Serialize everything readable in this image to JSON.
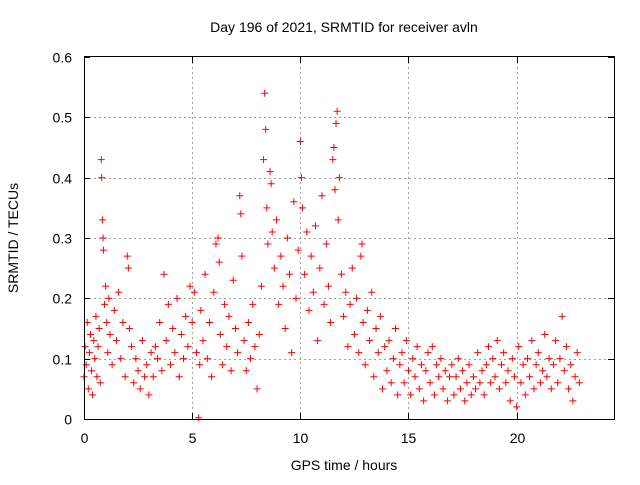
{
  "chart_data": {
    "type": "scatter",
    "title": "Day 196 of 2021, SRMTID for receiver avln",
    "xlabel": "GPS time / hours",
    "ylabel": "SRMTID / TECUs",
    "xlim": [
      0,
      24.5
    ],
    "ylim": [
      0,
      0.6
    ],
    "x_ticks": [
      "0",
      "5",
      "10",
      "15",
      "20"
    ],
    "x_tick_values": [
      0,
      5,
      10,
      15,
      20
    ],
    "y_ticks": [
      "0",
      "0.1",
      "0.2",
      "0.3",
      "0.4",
      "0.5",
      "0.6"
    ],
    "y_tick_values": [
      0,
      0.1,
      0.2,
      0.3,
      0.4,
      0.5,
      0.6
    ],
    "grid": true,
    "marker": "+",
    "color": "#ff0000",
    "series": [
      {
        "name": "SRMTID",
        "points": [
          [
            0.0,
            0.07
          ],
          [
            0.05,
            0.12
          ],
          [
            0.1,
            0.09
          ],
          [
            0.15,
            0.16
          ],
          [
            0.2,
            0.05
          ],
          [
            0.25,
            0.11
          ],
          [
            0.3,
            0.14
          ],
          [
            0.35,
            0.08
          ],
          [
            0.4,
            0.04
          ],
          [
            0.45,
            0.13
          ],
          [
            0.5,
            0.1
          ],
          [
            0.55,
            0.17
          ],
          [
            0.6,
            0.07
          ],
          [
            0.65,
            0.12
          ],
          [
            0.7,
            0.15
          ],
          [
            0.75,
            0.06
          ],
          [
            0.8,
            0.43
          ],
          [
            0.82,
            0.4
          ],
          [
            0.85,
            0.33
          ],
          [
            0.88,
            0.3
          ],
          [
            0.9,
            0.28
          ],
          [
            0.95,
            0.19
          ],
          [
            1.0,
            0.22
          ],
          [
            1.05,
            0.16
          ],
          [
            1.1,
            0.11
          ],
          [
            1.15,
            0.2
          ],
          [
            1.2,
            0.14
          ],
          [
            1.3,
            0.09
          ],
          [
            1.4,
            0.18
          ],
          [
            1.5,
            0.13
          ],
          [
            1.6,
            0.21
          ],
          [
            1.7,
            0.1
          ],
          [
            1.8,
            0.16
          ],
          [
            1.9,
            0.07
          ],
          [
            2.0,
            0.27
          ],
          [
            2.05,
            0.25
          ],
          [
            2.1,
            0.15
          ],
          [
            2.2,
            0.12
          ],
          [
            2.3,
            0.06
          ],
          [
            2.4,
            0.1
          ],
          [
            2.5,
            0.08
          ],
          [
            2.6,
            0.05
          ],
          [
            2.7,
            0.13
          ],
          [
            2.8,
            0.07
          ],
          [
            2.9,
            0.09
          ],
          [
            3.0,
            0.04
          ],
          [
            3.1,
            0.11
          ],
          [
            3.2,
            0.07
          ],
          [
            3.3,
            0.12
          ],
          [
            3.4,
            0.1
          ],
          [
            3.5,
            0.16
          ],
          [
            3.6,
            0.08
          ],
          [
            3.7,
            0.24
          ],
          [
            3.8,
            0.13
          ],
          [
            3.9,
            0.19
          ],
          [
            4.0,
            0.09
          ],
          [
            4.1,
            0.15
          ],
          [
            4.2,
            0.11
          ],
          [
            4.3,
            0.2
          ],
          [
            4.4,
            0.07
          ],
          [
            4.5,
            0.14
          ],
          [
            4.6,
            0.1
          ],
          [
            4.7,
            0.17
          ],
          [
            4.8,
            0.12
          ],
          [
            4.9,
            0.22
          ],
          [
            5.0,
            0.16
          ],
          [
            5.1,
            0.21
          ],
          [
            5.2,
            0.11
          ],
          [
            5.3,
            0.002
          ],
          [
            5.35,
            0.09
          ],
          [
            5.4,
            0.18
          ],
          [
            5.5,
            0.13
          ],
          [
            5.6,
            0.24
          ],
          [
            5.7,
            0.1
          ],
          [
            5.8,
            0.16
          ],
          [
            5.9,
            0.07
          ],
          [
            6.0,
            0.21
          ],
          [
            6.1,
            0.29
          ],
          [
            6.2,
            0.3
          ],
          [
            6.25,
            0.26
          ],
          [
            6.3,
            0.14
          ],
          [
            6.4,
            0.09
          ],
          [
            6.5,
            0.19
          ],
          [
            6.6,
            0.12
          ],
          [
            6.7,
            0.17
          ],
          [
            6.8,
            0.08
          ],
          [
            6.9,
            0.23
          ],
          [
            7.0,
            0.15
          ],
          [
            7.1,
            0.11
          ],
          [
            7.2,
            0.37
          ],
          [
            7.25,
            0.34
          ],
          [
            7.3,
            0.27
          ],
          [
            7.4,
            0.13
          ],
          [
            7.5,
            0.08
          ],
          [
            7.6,
            0.16
          ],
          [
            7.7,
            0.1
          ],
          [
            7.8,
            0.19
          ],
          [
            7.9,
            0.12
          ],
          [
            8.0,
            0.05
          ],
          [
            8.1,
            0.14
          ],
          [
            8.2,
            0.22
          ],
          [
            8.3,
            0.43
          ],
          [
            8.35,
            0.54
          ],
          [
            8.4,
            0.48
          ],
          [
            8.45,
            0.35
          ],
          [
            8.5,
            0.29
          ],
          [
            8.6,
            0.41
          ],
          [
            8.65,
            0.39
          ],
          [
            8.7,
            0.31
          ],
          [
            8.8,
            0.25
          ],
          [
            8.9,
            0.33
          ],
          [
            9.0,
            0.19
          ],
          [
            9.1,
            0.27
          ],
          [
            9.2,
            0.22
          ],
          [
            9.3,
            0.15
          ],
          [
            9.4,
            0.3
          ],
          [
            9.5,
            0.24
          ],
          [
            9.6,
            0.11
          ],
          [
            9.7,
            0.36
          ],
          [
            9.8,
            0.2
          ],
          [
            9.9,
            0.28
          ],
          [
            10.0,
            0.46
          ],
          [
            10.05,
            0.4
          ],
          [
            10.1,
            0.35
          ],
          [
            10.2,
            0.24
          ],
          [
            10.3,
            0.31
          ],
          [
            10.4,
            0.18
          ],
          [
            10.5,
            0.27
          ],
          [
            10.6,
            0.21
          ],
          [
            10.7,
            0.32
          ],
          [
            10.8,
            0.13
          ],
          [
            10.9,
            0.25
          ],
          [
            11.0,
            0.37
          ],
          [
            11.1,
            0.19
          ],
          [
            11.2,
            0.29
          ],
          [
            11.3,
            0.22
          ],
          [
            11.4,
            0.16
          ],
          [
            11.5,
            0.43
          ],
          [
            11.55,
            0.45
          ],
          [
            11.6,
            0.38
          ],
          [
            11.65,
            0.49
          ],
          [
            11.7,
            0.51
          ],
          [
            11.75,
            0.33
          ],
          [
            11.8,
            0.4
          ],
          [
            11.9,
            0.24
          ],
          [
            12.0,
            0.17
          ],
          [
            12.1,
            0.21
          ],
          [
            12.2,
            0.12
          ],
          [
            12.3,
            0.19
          ],
          [
            12.4,
            0.25
          ],
          [
            12.5,
            0.14
          ],
          [
            12.6,
            0.2
          ],
          [
            12.7,
            0.11
          ],
          [
            12.8,
            0.27
          ],
          [
            12.85,
            0.29
          ],
          [
            12.9,
            0.16
          ],
          [
            13.0,
            0.09
          ],
          [
            13.1,
            0.18
          ],
          [
            13.2,
            0.13
          ],
          [
            13.3,
            0.21
          ],
          [
            13.4,
            0.07
          ],
          [
            13.5,
            0.15
          ],
          [
            13.6,
            0.11
          ],
          [
            13.7,
            0.17
          ],
          [
            13.8,
            0.05
          ],
          [
            13.9,
            0.12
          ],
          [
            14.0,
            0.08
          ],
          [
            14.1,
            0.13
          ],
          [
            14.2,
            0.06
          ],
          [
            14.3,
            0.1
          ],
          [
            14.4,
            0.15
          ],
          [
            14.5,
            0.04
          ],
          [
            14.6,
            0.09
          ],
          [
            14.7,
            0.11
          ],
          [
            14.8,
            0.06
          ],
          [
            14.9,
            0.13
          ],
          [
            15.0,
            0.08
          ],
          [
            15.1,
            0.04
          ],
          [
            15.2,
            0.1
          ],
          [
            15.3,
            0.07
          ],
          [
            15.4,
            0.12
          ],
          [
            15.5,
            0.05
          ],
          [
            15.6,
            0.09
          ],
          [
            15.7,
            0.03
          ],
          [
            15.8,
            0.08
          ],
          [
            15.9,
            0.11
          ],
          [
            16.0,
            0.06
          ],
          [
            16.1,
            0.12
          ],
          [
            16.2,
            0.04
          ],
          [
            16.3,
            0.09
          ],
          [
            16.4,
            0.07
          ],
          [
            16.5,
            0.1
          ],
          [
            16.6,
            0.05
          ],
          [
            16.7,
            0.08
          ],
          [
            16.8,
            0.03
          ],
          [
            16.9,
            0.07
          ],
          [
            17.0,
            0.09
          ],
          [
            17.1,
            0.04
          ],
          [
            17.2,
            0.07
          ],
          [
            17.3,
            0.1
          ],
          [
            17.4,
            0.05
          ],
          [
            17.5,
            0.08
          ],
          [
            17.6,
            0.03
          ],
          [
            17.7,
            0.06
          ],
          [
            17.8,
            0.09
          ],
          [
            17.9,
            0.04
          ],
          [
            18.0,
            0.07
          ],
          [
            18.1,
            0.05
          ],
          [
            18.2,
            0.11
          ],
          [
            18.3,
            0.06
          ],
          [
            18.4,
            0.08
          ],
          [
            18.5,
            0.04
          ],
          [
            18.6,
            0.09
          ],
          [
            18.7,
            0.12
          ],
          [
            18.8,
            0.06
          ],
          [
            18.9,
            0.1
          ],
          [
            19.0,
            0.07
          ],
          [
            19.1,
            0.13
          ],
          [
            19.2,
            0.05
          ],
          [
            19.3,
            0.09
          ],
          [
            19.4,
            0.11
          ],
          [
            19.5,
            0.06
          ],
          [
            19.6,
            0.08
          ],
          [
            19.7,
            0.03
          ],
          [
            19.8,
            0.1
          ],
          [
            19.9,
            0.07
          ],
          [
            20.0,
            0.02
          ],
          [
            20.1,
            0.12
          ],
          [
            20.2,
            0.06
          ],
          [
            20.3,
            0.09
          ],
          [
            20.4,
            0.04
          ],
          [
            20.5,
            0.1
          ],
          [
            20.6,
            0.07
          ],
          [
            20.7,
            0.13
          ],
          [
            20.8,
            0.05
          ],
          [
            20.9,
            0.09
          ],
          [
            21.0,
            0.11
          ],
          [
            21.1,
            0.06
          ],
          [
            21.2,
            0.08
          ],
          [
            21.3,
            0.14
          ],
          [
            21.4,
            0.07
          ],
          [
            21.5,
            0.1
          ],
          [
            21.6,
            0.05
          ],
          [
            21.7,
            0.09
          ],
          [
            21.8,
            0.13
          ],
          [
            21.9,
            0.06
          ],
          [
            22.0,
            0.1
          ],
          [
            22.1,
            0.17
          ],
          [
            22.2,
            0.08
          ],
          [
            22.3,
            0.12
          ],
          [
            22.4,
            0.05
          ],
          [
            22.5,
            0.09
          ],
          [
            22.6,
            0.03
          ],
          [
            22.7,
            0.07
          ],
          [
            22.8,
            0.11
          ],
          [
            22.9,
            0.06
          ]
        ]
      }
    ]
  }
}
